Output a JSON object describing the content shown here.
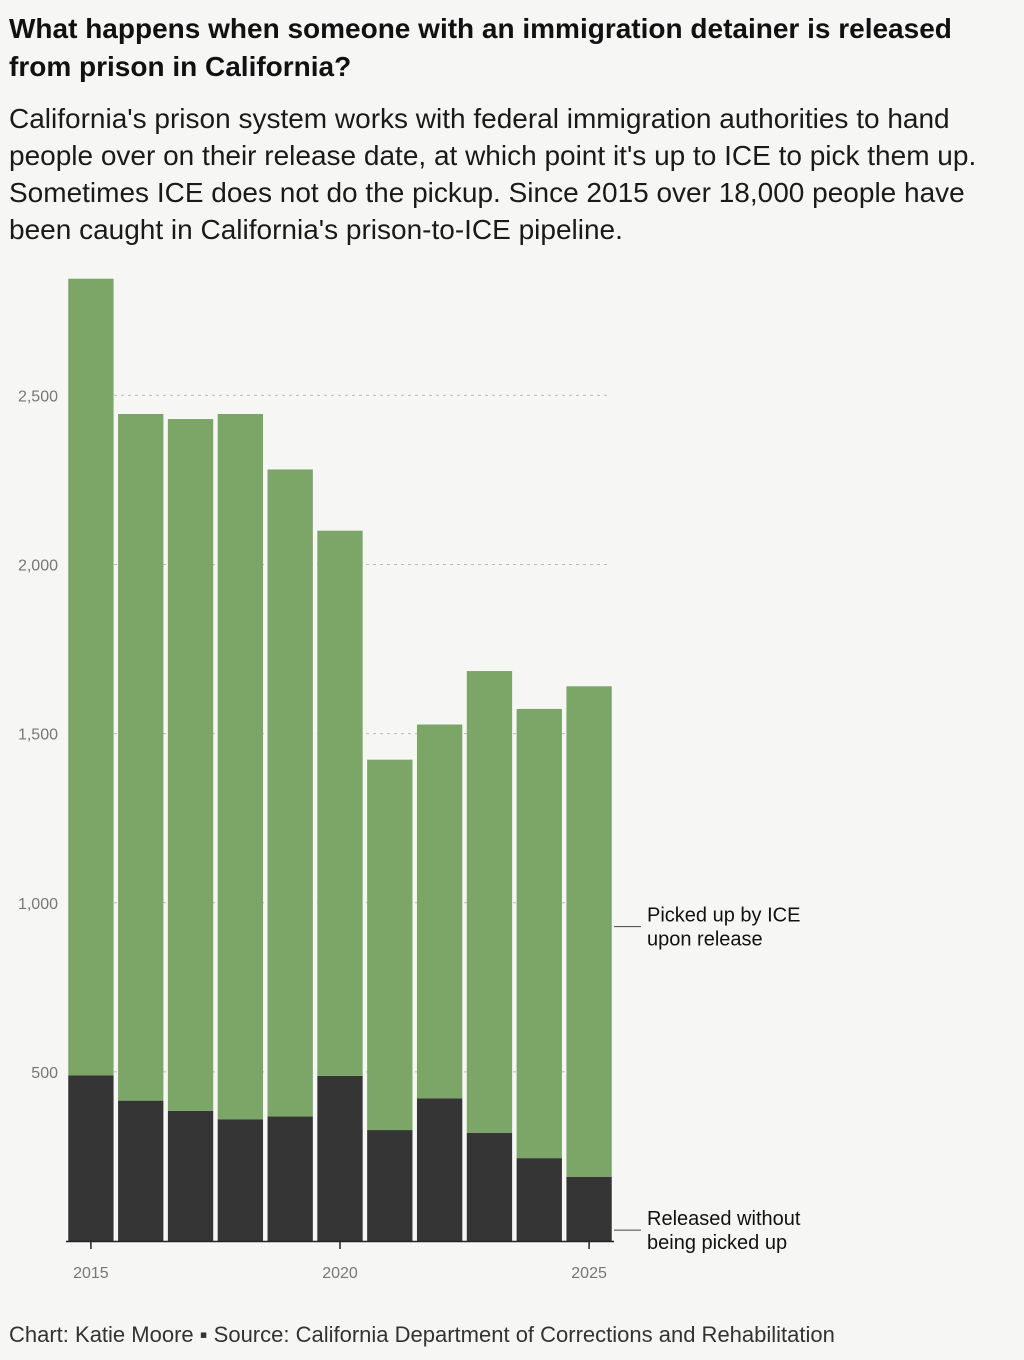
{
  "title": "What happens when someone with an immigration detainer is released from prison in California?",
  "subtitle": "California's prison system works with federal immigration authorities to hand people over on their release date, at which point it's up to ICE to pick them up. Sometimes ICE does not do the pickup. Since 2015 over 18,000 people have been caught in California's prison-to-ICE pipeline.",
  "credit": "Chart: Katie Moore ▪ Source: California Department of Corrections and Rehabilitation",
  "chart_data": {
    "type": "bar",
    "stacked": true,
    "x": [
      2015,
      2016,
      2017,
      2018,
      2019,
      2020,
      2021,
      2022,
      2023,
      2024,
      2025
    ],
    "series": [
      {
        "name": "Released without being picked up",
        "color": "#353535",
        "values": [
          490,
          415,
          385,
          360,
          368,
          488,
          328,
          422,
          320,
          245,
          190
        ]
      },
      {
        "name": "Picked up by ICE upon release",
        "color": "#7ba667",
        "values": [
          2355,
          2030,
          2045,
          2085,
          1913,
          1612,
          1095,
          1105,
          1365,
          1328,
          1450
        ]
      }
    ],
    "annotations": [
      {
        "series": 1,
        "lines": [
          "Picked up by ICE",
          "upon release"
        ]
      },
      {
        "series": 0,
        "lines": [
          "Released without",
          "being picked up"
        ]
      }
    ],
    "y_ticks": [
      500,
      1000,
      1500,
      2000,
      2500
    ],
    "y_tick_labels": [
      "500",
      "1,000",
      "1,500",
      "2,000",
      "2,500"
    ],
    "x_ticks": [
      2015,
      2020,
      2025
    ],
    "ylim": [
      0,
      2850
    ],
    "grid": "dashed horizontal",
    "legend": "direct labels at right"
  }
}
